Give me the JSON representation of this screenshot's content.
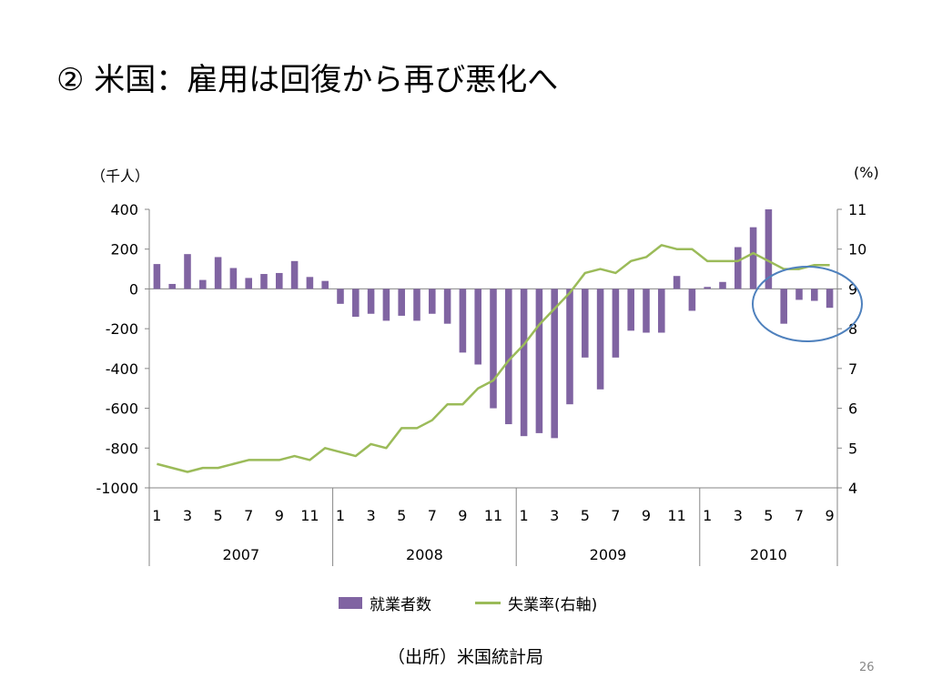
{
  "slide": {
    "title": "② 米国：雇用は回復から再び悪化へ",
    "source": "（出所）米国統計局",
    "page_number": "26"
  },
  "colors": {
    "bar": "#8064a2",
    "line": "#9bbb59",
    "highlight_circle": "#4f81bd"
  },
  "chart_data": {
    "type": "bar+line",
    "unit_left": "（千人）",
    "unit_right": "(%)",
    "ylim": [
      -1000,
      400
    ],
    "yticks": [
      "400",
      "200",
      "0",
      "-200",
      "-400",
      "-600",
      "-800",
      "-1000"
    ],
    "y2lim": [
      4,
      11
    ],
    "y2ticks": [
      "11",
      "10",
      "9",
      "8",
      "7",
      "6",
      "5",
      "4"
    ],
    "month_labels": [
      "1",
      "",
      "3",
      "",
      "5",
      "",
      "7",
      "",
      "9",
      "",
      "11",
      "",
      "1",
      "",
      "3",
      "",
      "5",
      "",
      "7",
      "",
      "9",
      "",
      "11",
      "",
      "1",
      "",
      "3",
      "",
      "5",
      "",
      "7",
      "",
      "9",
      "",
      "11",
      "",
      "1",
      "",
      "3",
      "",
      "5",
      "",
      "7",
      "",
      "9"
    ],
    "years": [
      {
        "label": "2007",
        "months": 12
      },
      {
        "label": "2008",
        "months": 12
      },
      {
        "label": "2009",
        "months": 12
      },
      {
        "label": "2010",
        "months": 9
      }
    ],
    "series": [
      {
        "name": "就業者数",
        "type": "bar",
        "axis": "left",
        "values": [
          125,
          25,
          175,
          45,
          160,
          105,
          55,
          75,
          80,
          140,
          60,
          40,
          -75,
          -140,
          -125,
          -160,
          -135,
          -160,
          -125,
          -175,
          -320,
          -380,
          -600,
          -680,
          -740,
          -725,
          -750,
          -580,
          -345,
          -505,
          -345,
          -210,
          -220,
          -220,
          65,
          -110,
          10,
          35,
          210,
          310,
          430,
          -175,
          -55,
          -60,
          -95
        ]
      },
      {
        "name": "失業率(右軸)",
        "type": "line",
        "axis": "right",
        "values": [
          4.6,
          4.5,
          4.4,
          4.5,
          4.5,
          4.6,
          4.7,
          4.7,
          4.7,
          4.8,
          4.7,
          5.0,
          4.9,
          4.8,
          5.1,
          5.0,
          5.5,
          5.5,
          5.7,
          6.1,
          6.1,
          6.5,
          6.7,
          7.2,
          7.6,
          8.1,
          8.5,
          8.9,
          9.4,
          9.5,
          9.4,
          9.7,
          9.8,
          10.1,
          10.0,
          10.0,
          9.7,
          9.7,
          9.7,
          9.9,
          9.7,
          9.5,
          9.5,
          9.6,
          9.6
        ]
      }
    ],
    "legend_position": "bottom"
  }
}
